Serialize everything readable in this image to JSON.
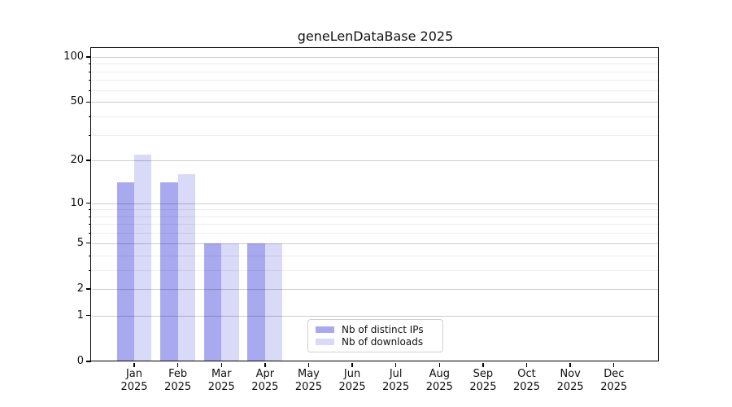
{
  "chart_data": {
    "type": "bar",
    "title": "geneLenDataBase 2025",
    "categories": [
      "Jan",
      "Feb",
      "Mar",
      "Apr",
      "May",
      "Jun",
      "Jul",
      "Aug",
      "Sep",
      "Oct",
      "Nov",
      "Dec"
    ],
    "category_year_label": "2025",
    "series": [
      {
        "name": "Nb of distinct IPs",
        "color": "#a9a9f0",
        "values": [
          14,
          14,
          5,
          5,
          0,
          0,
          0,
          0,
          0,
          0,
          0,
          0
        ]
      },
      {
        "name": "Nb of downloads",
        "color": "#d9d9f8",
        "values": [
          22,
          16,
          5,
          5,
          0,
          0,
          0,
          0,
          0,
          0,
          0,
          0
        ]
      }
    ],
    "y_scale": "log10(value+1)",
    "y_axis": {
      "ticks": [
        0,
        1,
        2,
        5,
        10,
        20,
        50,
        100
      ],
      "minor_ticks": [
        3,
        4,
        6,
        7,
        8,
        9,
        30,
        40,
        60,
        70,
        80,
        90
      ],
      "top_value": 113
    },
    "x_axis": {
      "tick_labels_two_lines": true
    },
    "grid": true,
    "legend": {
      "position": "bottom-center"
    }
  }
}
